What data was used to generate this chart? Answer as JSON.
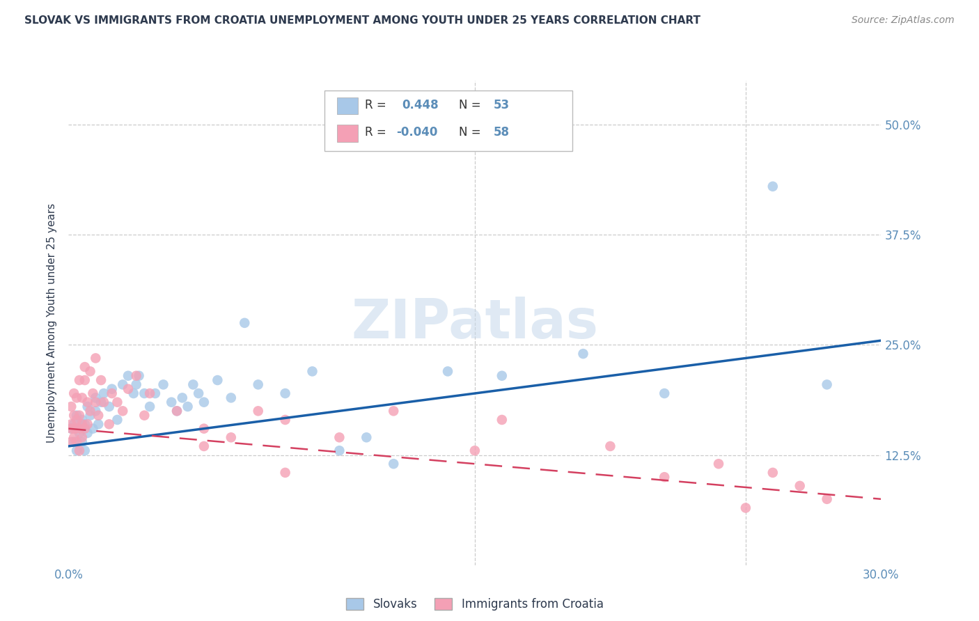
{
  "title": "SLOVAK VS IMMIGRANTS FROM CROATIA UNEMPLOYMENT AMONG YOUTH UNDER 25 YEARS CORRELATION CHART",
  "source": "Source: ZipAtlas.com",
  "ylabel": "Unemployment Among Youth under 25 years",
  "xlim": [
    0.0,
    0.3
  ],
  "ylim": [
    0.0,
    0.55
  ],
  "yticks": [
    0.125,
    0.25,
    0.375,
    0.5
  ],
  "ytick_labels": [
    "12.5%",
    "25.0%",
    "37.5%",
    "50.0%"
  ],
  "xticks": [
    0.0,
    0.05,
    0.1,
    0.15,
    0.2,
    0.25,
    0.3
  ],
  "xtick_labels": [
    "0.0%",
    "",
    "",
    "",
    "",
    "",
    "30.0%"
  ],
  "blue_R": 0.448,
  "blue_N": 53,
  "pink_R": -0.04,
  "pink_N": 58,
  "blue_color": "#A8C8E8",
  "pink_color": "#F4A0B5",
  "blue_line_color": "#1A5FA8",
  "pink_line_color": "#D44060",
  "title_color": "#2E3A4E",
  "axis_label_color": "#2E3A4E",
  "tick_color": "#5B8DB8",
  "watermark": "ZIPatlas",
  "blue_scatter_x": [
    0.001,
    0.002,
    0.002,
    0.003,
    0.003,
    0.004,
    0.005,
    0.005,
    0.006,
    0.006,
    0.007,
    0.007,
    0.008,
    0.009,
    0.01,
    0.01,
    0.011,
    0.012,
    0.013,
    0.015,
    0.016,
    0.018,
    0.02,
    0.022,
    0.024,
    0.025,
    0.026,
    0.028,
    0.03,
    0.032,
    0.035,
    0.038,
    0.04,
    0.042,
    0.044,
    0.046,
    0.048,
    0.05,
    0.055,
    0.06,
    0.065,
    0.07,
    0.08,
    0.09,
    0.1,
    0.11,
    0.12,
    0.14,
    0.16,
    0.19,
    0.22,
    0.26,
    0.28
  ],
  "blue_scatter_y": [
    0.155,
    0.14,
    0.16,
    0.13,
    0.17,
    0.15,
    0.14,
    0.165,
    0.13,
    0.16,
    0.15,
    0.18,
    0.17,
    0.155,
    0.175,
    0.19,
    0.16,
    0.185,
    0.195,
    0.18,
    0.2,
    0.165,
    0.205,
    0.215,
    0.195,
    0.205,
    0.215,
    0.195,
    0.18,
    0.195,
    0.205,
    0.185,
    0.175,
    0.19,
    0.18,
    0.205,
    0.195,
    0.185,
    0.21,
    0.19,
    0.275,
    0.205,
    0.195,
    0.22,
    0.13,
    0.145,
    0.115,
    0.22,
    0.215,
    0.24,
    0.195,
    0.43,
    0.205
  ],
  "pink_scatter_x": [
    0.001,
    0.001,
    0.001,
    0.001,
    0.002,
    0.002,
    0.002,
    0.002,
    0.003,
    0.003,
    0.003,
    0.003,
    0.004,
    0.004,
    0.004,
    0.004,
    0.005,
    0.005,
    0.005,
    0.006,
    0.006,
    0.006,
    0.007,
    0.007,
    0.008,
    0.008,
    0.009,
    0.01,
    0.01,
    0.011,
    0.012,
    0.013,
    0.015,
    0.016,
    0.018,
    0.02,
    0.022,
    0.025,
    0.028,
    0.03,
    0.04,
    0.05,
    0.06,
    0.07,
    0.08,
    0.1,
    0.12,
    0.15,
    0.16,
    0.2,
    0.22,
    0.24,
    0.25,
    0.26,
    0.27,
    0.28,
    0.05,
    0.08
  ],
  "pink_scatter_y": [
    0.155,
    0.16,
    0.14,
    0.18,
    0.155,
    0.17,
    0.145,
    0.195,
    0.155,
    0.165,
    0.14,
    0.19,
    0.155,
    0.17,
    0.13,
    0.21,
    0.16,
    0.145,
    0.19,
    0.155,
    0.21,
    0.225,
    0.16,
    0.185,
    0.22,
    0.175,
    0.195,
    0.185,
    0.235,
    0.17,
    0.21,
    0.185,
    0.16,
    0.195,
    0.185,
    0.175,
    0.2,
    0.215,
    0.17,
    0.195,
    0.175,
    0.155,
    0.145,
    0.175,
    0.165,
    0.145,
    0.175,
    0.13,
    0.165,
    0.135,
    0.1,
    0.115,
    0.065,
    0.105,
    0.09,
    0.075,
    0.135,
    0.105
  ]
}
